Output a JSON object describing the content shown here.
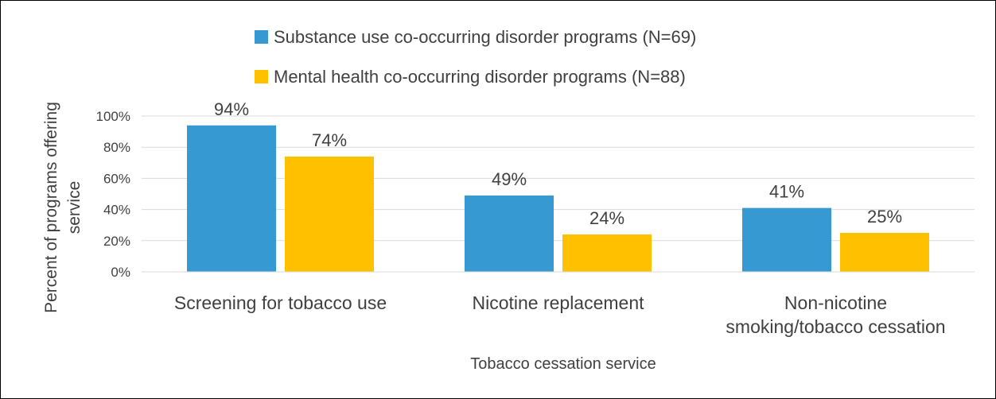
{
  "chart_data": {
    "type": "bar",
    "title": "",
    "xlabel": "Tobacco cessation service",
    "ylabel_lines": [
      "Percent of programs offering",
      "service"
    ],
    "categories": [
      [
        "Screening for tobacco use"
      ],
      [
        "Nicotine replacement"
      ],
      [
        "Non-nicotine",
        "smoking/tobacco cessation"
      ]
    ],
    "series": [
      {
        "name": "Substance use co-occurring disorder programs (N=69)",
        "color": "#3799D1",
        "values": [
          94,
          49,
          41
        ],
        "labels": [
          "94%",
          "49%",
          "41%"
        ]
      },
      {
        "name": "Mental health co-occurring disorder programs (N=88)",
        "color": "#FFC000",
        "values": [
          74,
          24,
          25
        ],
        "labels": [
          "74%",
          "24%",
          "25%"
        ]
      }
    ],
    "ylim": [
      0,
      100
    ],
    "yticks": [
      0,
      20,
      40,
      60,
      80,
      100
    ],
    "ytick_labels": [
      "0%",
      "20%",
      "40%",
      "60%",
      "80%",
      "100%"
    ],
    "grid": true,
    "legend_position": "top"
  }
}
